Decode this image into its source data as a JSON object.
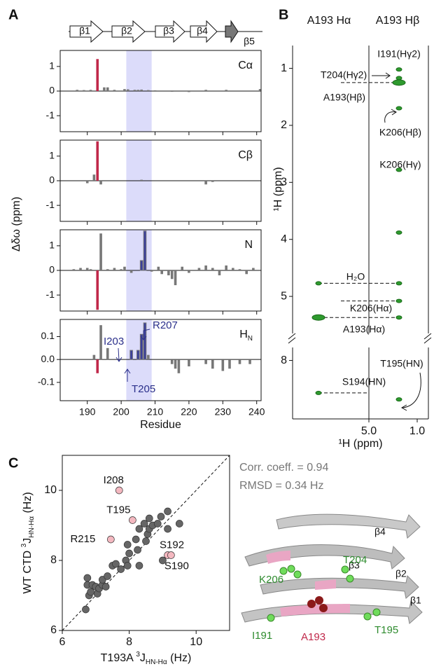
{
  "panel_labels": [
    "A",
    "B",
    "C"
  ],
  "secondary_structure": [
    "β1",
    "β2",
    "β3",
    "β4",
    "β5"
  ],
  "structure_labels": {
    "strands": [
      "β4",
      "β3",
      "β2",
      "β1"
    ],
    "residues": [
      "K206",
      "T204",
      "I191",
      "A193",
      "T195"
    ]
  },
  "chart_data": [
    {
      "type": "bar",
      "label": "Cα",
      "ylabel": "Δδω (ppm)",
      "xlim": [
        182,
        241.3
      ],
      "xticks": [
        190,
        200,
        210,
        220,
        230,
        240
      ],
      "ylim": [
        -1.65,
        1.65
      ],
      "yticks": [
        -1,
        0,
        1
      ],
      "shade": [
        201.5,
        209
      ],
      "shade_color": "#dcdcfa",
      "series": [
        {
          "color": "#777777",
          "x": [
            187,
            189,
            191,
            195,
            196,
            198,
            201,
            202,
            204,
            205,
            206,
            208,
            210,
            215,
            220,
            225,
            231,
            241
          ],
          "values": [
            0.05,
            0.04,
            0.05,
            0.15,
            0.15,
            0.05,
            0.08,
            0.07,
            0.05,
            0.05,
            0.06,
            0.04,
            0.03,
            -0.03,
            -0.04,
            0.05,
            0.05,
            0.08
          ]
        },
        {
          "color": "#c0284a",
          "x": [
            193
          ],
          "values": [
            1.3
          ]
        }
      ]
    },
    {
      "type": "bar",
      "label": "Cβ",
      "xlim": [
        182,
        241.3
      ],
      "xticks": [
        190,
        200,
        210,
        220,
        230,
        240
      ],
      "ylim": [
        -1.65,
        1.65
      ],
      "yticks": [
        -1,
        0,
        1
      ],
      "shade": [
        201.5,
        209
      ],
      "shade_color": "#dcdcfa",
      "series": [
        {
          "color": "#777777",
          "x": [
            190,
            192,
            194,
            206,
            225,
            227
          ],
          "values": [
            -0.1,
            0.25,
            -0.15,
            0.04,
            -0.15,
            -0.05
          ]
        },
        {
          "color": "#c0284a",
          "x": [
            193
          ],
          "values": [
            1.6
          ]
        }
      ]
    },
    {
      "type": "bar",
      "label": "N",
      "xlim": [
        182,
        241.3
      ],
      "xticks": [
        190,
        200,
        210,
        220,
        230,
        240
      ],
      "ylim": [
        -1.65,
        1.65
      ],
      "yticks": [
        -1,
        0,
        1
      ],
      "shade": [
        201.5,
        209
      ],
      "shade_color": "#dcdcfa",
      "series": [
        {
          "color": "#777777",
          "x": [
            186,
            188,
            190,
            191,
            194,
            196,
            198,
            200,
            201,
            203,
            209,
            211,
            212,
            214,
            215,
            216,
            218,
            220,
            223,
            225,
            227,
            229,
            231,
            233,
            235,
            237,
            239
          ],
          "values": [
            0.05,
            0.1,
            0.1,
            0.05,
            1.5,
            0.05,
            0.1,
            0.05,
            0.15,
            -0.1,
            -0.05,
            0.15,
            -0.15,
            -0.2,
            -0.35,
            -0.6,
            0.15,
            -0.1,
            0.1,
            0.2,
            0.1,
            -0.2,
            0.2,
            0.1,
            0.05,
            -0.15,
            0.1
          ]
        },
        {
          "color": "#c0284a",
          "x": [
            193
          ],
          "values": [
            -1.6
          ]
        },
        {
          "color": "#3a3f9a",
          "x": [
            206,
            207
          ],
          "values": [
            0.4,
            1.6
          ]
        }
      ]
    },
    {
      "type": "bar",
      "label": [
        "H",
        "N"
      ],
      "xlabel": "Residue",
      "xlim": [
        182,
        241.3
      ],
      "xticks": [
        190,
        200,
        210,
        220,
        230,
        240
      ],
      "ylim": [
        -0.18,
        0.175
      ],
      "yticks": [
        -0.1,
        {
          "value": 0,
          "label": "0.0"
        },
        0.1
      ],
      "shade": [
        201.5,
        209
      ],
      "shade_color": "#dcdcfa",
      "annotations": [
        "I203",
        "R207",
        "T205"
      ],
      "series": [
        {
          "color": "#777777",
          "x": [
            192,
            194,
            196,
            208,
            215,
            216,
            217,
            220,
            225,
            227,
            230,
            232,
            235,
            238
          ],
          "values": [
            0.02,
            0.15,
            0.05,
            0.02,
            -0.02,
            -0.04,
            -0.06,
            -0.03,
            -0.02,
            -0.04,
            -0.05,
            -0.04,
            -0.02,
            -0.02
          ]
        },
        {
          "color": "#c0284a",
          "x": [
            193
          ],
          "values": [
            -0.06
          ]
        },
        {
          "color": "#3a3f9a",
          "x": [
            203,
            205,
            206,
            207
          ],
          "values": [
            0.04,
            0.04,
            0.11,
            0.16
          ]
        }
      ]
    },
    {
      "type": "strip",
      "categories": [
        "A193 Hα",
        "A193 Hβ"
      ],
      "xtick_labels": [
        "5.0",
        "1.0"
      ],
      "xlabel": "¹H (ppm)",
      "ylabel": "¹H (ppm)",
      "ylim": [
        0.6,
        5.65
      ],
      "yticks": [
        1,
        2,
        3,
        4,
        5
      ],
      "annotations": [
        "I191(Hγ2)",
        "T204(Hγ2)",
        "A193(Hβ)",
        "K206(Hβ)",
        "K206(Hγ)",
        "H₂O",
        "K206(Hα)",
        "A193(Hα)"
      ],
      "series": [
        {
          "color": "#2e9a2e",
          "values": [
            4.77,
            5.37
          ]
        },
        {
          "color": "#2e9a2e",
          "values": [
            1.02,
            1.17,
            1.25,
            1.7,
            2.78,
            3.88,
            4.77,
            5.08,
            5.37
          ]
        }
      ]
    },
    {
      "type": "strip",
      "ylim": [
        7.8,
        8.9
      ],
      "yticks": [
        8
      ],
      "annotations": [
        "T195(HN)",
        "S194(HN)"
      ],
      "series": [
        {
          "color": "#2e9a2e",
          "values": [
            8.5
          ]
        },
        {
          "color": "#2e9a2e",
          "values": [
            8.6
          ]
        }
      ]
    },
    {
      "type": "scatter",
      "xlabel": [
        "T193A ",
        "3",
        "J",
        "HN-Hα",
        " (Hz)"
      ],
      "ylabel": [
        "WT CTD ",
        "3",
        "J",
        "HN-Hα",
        " (Hz)"
      ],
      "xlim": [
        6,
        11
      ],
      "ylim": [
        6,
        11
      ],
      "xticks": [
        6,
        8,
        10
      ],
      "yticks": [
        6,
        8,
        10
      ],
      "annotations": [
        "Corr. coeff. = 0.94",
        "RMSD = 0.34 Hz"
      ],
      "series": [
        {
          "color": "#666666",
          "x": [
            6.7,
            6.75,
            6.8,
            6.85,
            6.9,
            7.0,
            7.05,
            7.1,
            7.2,
            7.3,
            6.75,
            7.2,
            7.35,
            7.5,
            7.6,
            7.75,
            7.9,
            7.95,
            8.0,
            8.25,
            8.3,
            7.95,
            8.2,
            8.5,
            8.55,
            8.6,
            8.7,
            8.45,
            8.6,
            8.85,
            8.95,
            9.15,
            9.0,
            9.5,
            8.3,
            9.15
          ],
          "values": [
            6.6,
            7.3,
            7.0,
            7.1,
            7.3,
            7.25,
            7.05,
            7.2,
            7.3,
            7.25,
            7.5,
            7.45,
            7.55,
            7.85,
            7.9,
            7.75,
            8.0,
            7.85,
            8.2,
            8.3,
            7.85,
            8.45,
            8.6,
            8.55,
            8.75,
            8.9,
            9.0,
            9.05,
            9.2,
            9.05,
            9.25,
            9.4,
            8.0,
            9.05,
            8.9,
            8.9
          ]
        },
        {
          "color": "#f4b8c0",
          "x": [
            7.7,
            8.1,
            7.45,
            9.15,
            9.25
          ],
          "values": [
            10.0,
            9.15,
            8.6,
            8.15,
            8.15
          ],
          "labels": [
            "I208",
            "T195",
            "R215",
            "S192",
            "S190"
          ]
        }
      ]
    }
  ]
}
